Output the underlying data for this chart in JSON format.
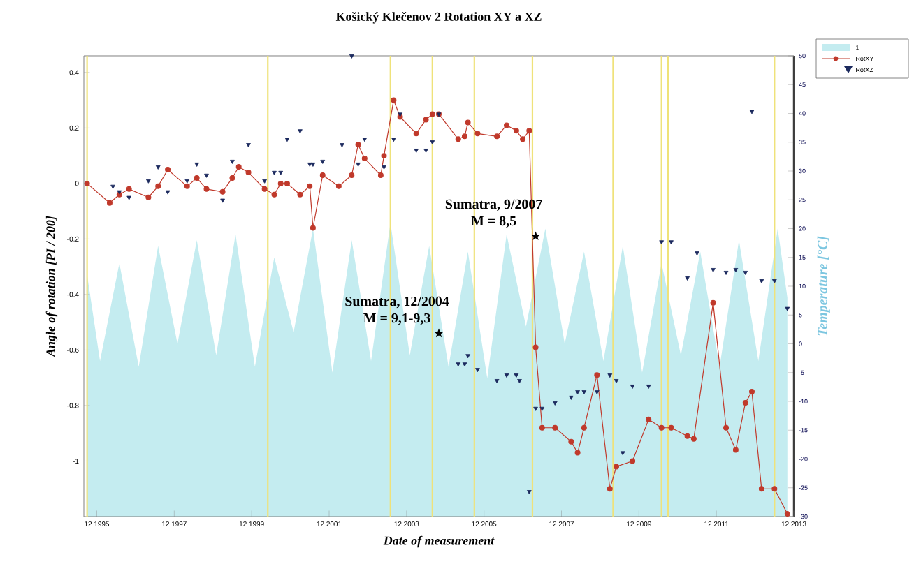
{
  "chart_data": {
    "type": "line",
    "title": "Košický Klečenov 2   Rotation XY a XZ",
    "xlabel": "Date of measurement",
    "ylabel": "Angle of rotation [PI / 200]",
    "y2label": "Temperature [°C]",
    "xlim": [
      "1995-08",
      "2013-12"
    ],
    "xticks": [
      {
        "value": "1995-12",
        "label": "12.1995"
      },
      {
        "value": "1997-12",
        "label": "12.1997"
      },
      {
        "value": "1999-12",
        "label": "12.1999"
      },
      {
        "value": "2001-12",
        "label": "12.2001"
      },
      {
        "value": "2003-12",
        "label": "12.2003"
      },
      {
        "value": "2005-12",
        "label": "12.2005"
      },
      {
        "value": "2007-12",
        "label": "12.2007"
      },
      {
        "value": "2009-12",
        "label": "12.2009"
      },
      {
        "value": "2011-12",
        "label": "12.2011"
      },
      {
        "value": "2013-12",
        "label": "12.2013"
      }
    ],
    "ylim": [
      -1.2,
      0.46
    ],
    "yticks": [
      -1,
      -0.8,
      -0.6,
      -0.4,
      -0.2,
      0,
      0.2,
      0.4
    ],
    "y2lim": [
      -30,
      50
    ],
    "y2ticks": [
      -30,
      -25,
      -20,
      -15,
      -10,
      -5,
      0,
      5,
      10,
      15,
      20,
      25,
      30,
      35,
      40,
      45,
      50
    ],
    "legend": "top right",
    "ref_lines": [
      {
        "axis": "x",
        "value": "1995-09",
        "color": "#efe27a"
      },
      {
        "axis": "x",
        "value": "2000-05",
        "color": "#efe27a"
      },
      {
        "axis": "x",
        "value": "2003-07",
        "color": "#efe27a"
      },
      {
        "axis": "x",
        "value": "2004-08",
        "color": "#efe27a"
      },
      {
        "axis": "x",
        "value": "2005-09",
        "color": "#efe27a"
      },
      {
        "axis": "x",
        "value": "2007-03",
        "color": "#efe27a"
      },
      {
        "axis": "x",
        "value": "2009-04",
        "color": "#efe27a"
      },
      {
        "axis": "x",
        "value": "2010-07",
        "color": "#efe27a"
      },
      {
        "axis": "x",
        "value": "2010-09",
        "color": "#efe27a"
      },
      {
        "axis": "x",
        "value": "2013-06",
        "color": "#efe27a"
      }
    ],
    "annotations": [
      {
        "text": "Sumatra, 12/2004",
        "x": "2004-10",
        "y": -0.54
      },
      {
        "text": "M = 9,1-9,3",
        "x": "2004-10",
        "y": -0.54
      },
      {
        "text": "Sumatra, 9/2007",
        "x": "2007-04",
        "y": -0.19
      },
      {
        "text": "M = 8,5",
        "x": "2007-04",
        "y": -0.19
      }
    ],
    "series": [
      {
        "name": "1",
        "type": "area",
        "axis": "y2",
        "color": "#c4ecf0",
        "x": [
          "1995-09",
          "1996-01",
          "1996-07",
          "1997-01",
          "1997-07",
          "1998-01",
          "1998-07",
          "1999-01",
          "1999-07",
          "2000-01",
          "2000-07",
          "2001-01",
          "2001-07",
          "2002-01",
          "2002-07",
          "2003-01",
          "2003-07",
          "2004-01",
          "2004-07",
          "2005-01",
          "2005-07",
          "2006-01",
          "2006-07",
          "2007-01",
          "2007-07",
          "2008-01",
          "2008-07",
          "2009-01",
          "2009-07",
          "2010-01",
          "2010-07",
          "2011-01",
          "2011-07",
          "2012-01",
          "2012-07",
          "2013-01",
          "2013-07",
          "2013-10"
        ],
        "values": [
          12,
          -3,
          14,
          -4,
          17,
          0,
          18,
          -2,
          19,
          -4,
          15,
          2,
          20,
          -5,
          18,
          -3,
          21,
          -2,
          17,
          -4,
          16,
          -6,
          19,
          3,
          20,
          0,
          16,
          -3,
          17,
          -5,
          14,
          -2,
          16,
          -4,
          18,
          -3,
          20,
          8
        ]
      },
      {
        "name": "RotXY",
        "color": "#c0392b",
        "marker": "circle",
        "line_style": "solid",
        "x": [
          "1995-09",
          "1996-04",
          "1996-07",
          "1996-10",
          "1997-04",
          "1997-07",
          "1997-10",
          "1998-04",
          "1998-07",
          "1998-10",
          "1999-03",
          "1999-06",
          "1999-08",
          "1999-11",
          "2000-04",
          "2000-07",
          "2000-09",
          "2000-11",
          "2001-03",
          "2001-06",
          "2001-07",
          "2001-10",
          "2002-03",
          "2002-07",
          "2002-09",
          "2002-11",
          "2003-04",
          "2003-05",
          "2003-08",
          "2003-10",
          "2004-03",
          "2004-06",
          "2004-08",
          "2004-10",
          "2005-04",
          "2005-06",
          "2005-07",
          "2005-10",
          "2006-04",
          "2006-07",
          "2006-10",
          "2006-12",
          "2007-02",
          "2007-04",
          "2007-06",
          "2007-10",
          "2008-03",
          "2008-05",
          "2008-07",
          "2008-11",
          "2009-03",
          "2009-05",
          "2009-10",
          "2010-03",
          "2010-07",
          "2010-10",
          "2011-03",
          "2011-05",
          "2011-11",
          "2012-03",
          "2012-06",
          "2012-09",
          "2012-11",
          "2013-02",
          "2013-06",
          "2013-10"
        ],
        "values": [
          0,
          -0.07,
          -0.04,
          -0.02,
          -0.05,
          -0.01,
          0.05,
          -0.01,
          0.02,
          -0.02,
          -0.03,
          0.02,
          0.06,
          0.04,
          -0.02,
          -0.04,
          0,
          0,
          -0.04,
          -0.01,
          -0.16,
          0.03,
          -0.01,
          0.03,
          0.14,
          0.09,
          0.03,
          0.1,
          0.3,
          0.24,
          0.18,
          0.23,
          0.25,
          0.25,
          0.16,
          0.17,
          0.22,
          0.18,
          0.17,
          0.21,
          0.19,
          0.16,
          0.19,
          -0.59,
          -0.88,
          -0.88,
          -0.93,
          -0.97,
          -0.88,
          -0.69,
          -1.1,
          -1.02,
          -1,
          -0.85,
          -0.88,
          -0.88,
          -0.91,
          -0.92,
          -0.43,
          -0.88,
          -0.96,
          -0.79,
          -0.75,
          -1.1,
          -1.1,
          -1.19
        ]
      },
      {
        "name": "RotXZ",
        "type": "scatter",
        "color": "#1c2a5e",
        "marker": "triangle",
        "x": [
          "1996-05",
          "1996-07",
          "1996-10",
          "1997-04",
          "1997-07",
          "1997-10",
          "1998-04",
          "1998-07",
          "1998-10",
          "1999-03",
          "1999-06",
          "1999-11",
          "2000-04",
          "2000-07",
          "2000-09",
          "2000-11",
          "2001-03",
          "2001-06",
          "2001-07",
          "2001-10",
          "2002-04",
          "2002-07",
          "2002-09",
          "2002-11",
          "2003-05",
          "2003-08",
          "2003-10",
          "2004-03",
          "2004-06",
          "2004-08",
          "2004-10",
          "2005-04",
          "2005-06",
          "2005-07",
          "2005-10",
          "2006-04",
          "2006-07",
          "2006-10",
          "2006-11",
          "2007-02",
          "2007-04",
          "2007-06",
          "2007-10",
          "2008-03",
          "2008-05",
          "2008-07",
          "2008-11",
          "2009-03",
          "2009-05",
          "2009-07",
          "2009-10",
          "2010-03",
          "2010-07",
          "2010-10",
          "2011-03",
          "2011-06",
          "2011-11",
          "2012-03",
          "2012-06",
          "2012-09",
          "2012-11",
          "2013-02",
          "2013-06",
          "2013-10"
        ],
        "values": [
          -0.01,
          -0.03,
          -0.05,
          0.01,
          0.06,
          -0.03,
          0.01,
          0.07,
          0.03,
          -0.06,
          0.08,
          0.14,
          0.01,
          0.04,
          0.04,
          0.16,
          0.19,
          0.07,
          0.07,
          0.08,
          0.14,
          0.46,
          0.07,
          0.16,
          0.06,
          0.16,
          0.25,
          0.12,
          0.12,
          0.15,
          0.25,
          -0.65,
          -0.65,
          -0.62,
          -0.67,
          -0.71,
          -0.69,
          -0.69,
          -0.71,
          -1.11,
          -0.81,
          -0.81,
          -0.79,
          -0.77,
          -0.75,
          -0.75,
          -0.75,
          -0.69,
          -0.71,
          -0.97,
          -0.73,
          -0.73,
          -0.21,
          -0.21,
          -0.34,
          -0.25,
          -0.31,
          -0.32,
          -0.31,
          -0.32,
          0.26,
          -0.35,
          -0.35,
          -0.45
        ]
      }
    ]
  }
}
